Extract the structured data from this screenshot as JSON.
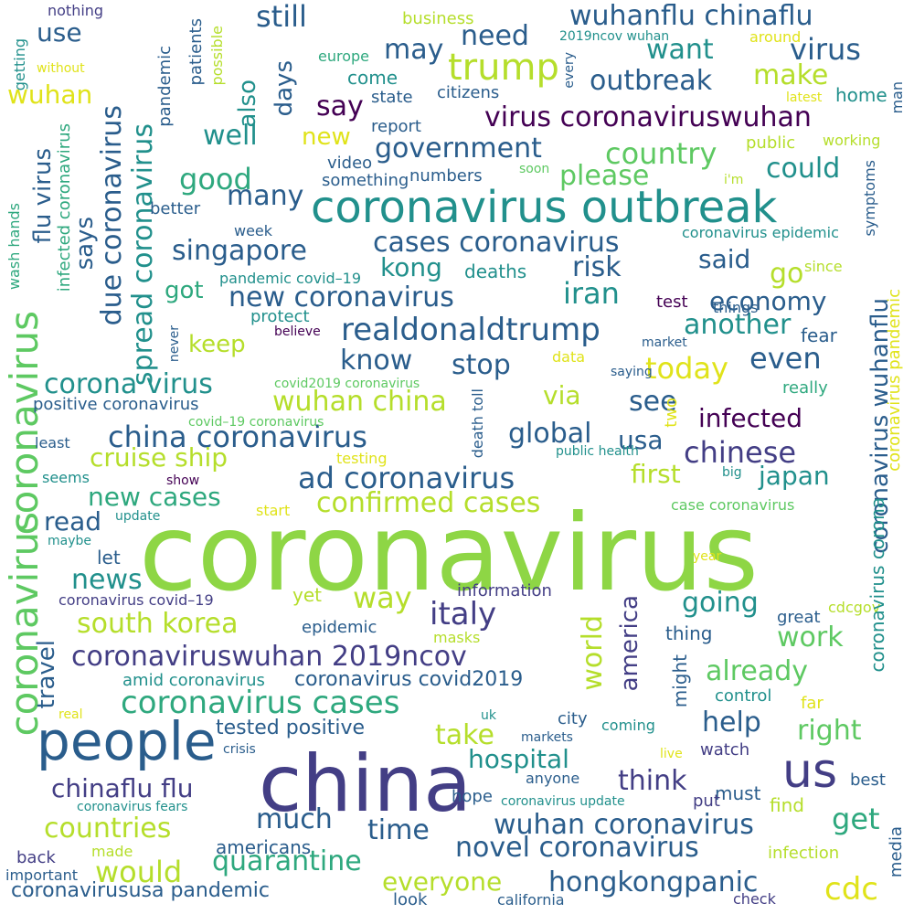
{
  "palette": {
    "dark_purple": "#440154",
    "indigo": "#433e85",
    "blue": "#2a5d8c",
    "teal": "#21908c",
    "green_teal": "#2ea87e",
    "green": "#5ec962",
    "lime": "#8ed645",
    "yellow_green": "#b5de2b",
    "yellow": "#e0e31a"
  },
  "words": [
    {
      "text": "coronavirus",
      "color": "lime"
    },
    {
      "text": "china",
      "color": "indigo"
    },
    {
      "text": "people",
      "color": "blue"
    },
    {
      "text": "coronavirus outbreak",
      "color": "teal"
    },
    {
      "text": "us",
      "color": "indigo"
    },
    {
      "text": "trump",
      "color": "yellow_green"
    },
    {
      "text": "coronavirus",
      "color": "green"
    },
    {
      "text": "coronavirus",
      "color": "green"
    },
    {
      "text": "spread coronavirus",
      "color": "teal"
    },
    {
      "text": "due coronavirus",
      "color": "blue"
    },
    {
      "text": "realdonaldtrump",
      "color": "blue"
    },
    {
      "text": "coronaviruswuhan 2019ncov",
      "color": "indigo"
    },
    {
      "text": "coronavirus cases",
      "color": "green_teal"
    },
    {
      "text": "china coronavirus",
      "color": "blue"
    },
    {
      "text": "ad coronavirus",
      "color": "blue"
    },
    {
      "text": "virus coronaviruswuhan",
      "color": "dark_purple"
    },
    {
      "text": "wuhanflu chinaflu",
      "color": "blue"
    },
    {
      "text": "corona virus",
      "color": "teal"
    },
    {
      "text": "cases coronavirus",
      "color": "blue"
    },
    {
      "text": "new coronavirus",
      "color": "blue"
    },
    {
      "text": "government",
      "color": "blue"
    },
    {
      "text": "country",
      "color": "green"
    },
    {
      "text": "outbreak",
      "color": "blue"
    },
    {
      "text": "virus",
      "color": "blue"
    },
    {
      "text": "still",
      "color": "blue"
    },
    {
      "text": "need",
      "color": "blue"
    },
    {
      "text": "may",
      "color": "blue"
    },
    {
      "text": "want",
      "color": "teal"
    },
    {
      "text": "make",
      "color": "yellow_green"
    },
    {
      "text": "say",
      "color": "dark_purple"
    },
    {
      "text": "good",
      "color": "green_teal"
    },
    {
      "text": "well",
      "color": "teal"
    },
    {
      "text": "many",
      "color": "blue"
    },
    {
      "text": "singapore",
      "color": "blue"
    },
    {
      "text": "could",
      "color": "teal"
    },
    {
      "text": "please",
      "color": "green"
    },
    {
      "text": "kong",
      "color": "teal"
    },
    {
      "text": "iran",
      "color": "teal"
    },
    {
      "text": "risk",
      "color": "blue"
    },
    {
      "text": "said",
      "color": "blue"
    },
    {
      "text": "go",
      "color": "yellow_green"
    },
    {
      "text": "economy",
      "color": "blue"
    },
    {
      "text": "another",
      "color": "teal"
    },
    {
      "text": "know",
      "color": "blue"
    },
    {
      "text": "stop",
      "color": "blue"
    },
    {
      "text": "today",
      "color": "yellow"
    },
    {
      "text": "even",
      "color": "blue"
    },
    {
      "text": "infected",
      "color": "dark_purple"
    },
    {
      "text": "chinese",
      "color": "indigo"
    },
    {
      "text": "wuhan china",
      "color": "yellow_green"
    },
    {
      "text": "cruise ship",
      "color": "yellow_green"
    },
    {
      "text": "confirmed cases",
      "color": "yellow_green"
    },
    {
      "text": "new cases",
      "color": "green_teal"
    },
    {
      "text": "global",
      "color": "blue"
    },
    {
      "text": "usa",
      "color": "blue"
    },
    {
      "text": "see",
      "color": "blue"
    },
    {
      "text": "via",
      "color": "yellow_green"
    },
    {
      "text": "first",
      "color": "yellow_green"
    },
    {
      "text": "japan",
      "color": "teal"
    },
    {
      "text": "read",
      "color": "blue"
    },
    {
      "text": "news",
      "color": "teal"
    },
    {
      "text": "way",
      "color": "yellow_green"
    },
    {
      "text": "italy",
      "color": "indigo"
    },
    {
      "text": "going",
      "color": "teal"
    },
    {
      "text": "work",
      "color": "green"
    },
    {
      "text": "already",
      "color": "green"
    },
    {
      "text": "south korea",
      "color": "yellow_green"
    },
    {
      "text": "coronavirus covid2019",
      "color": "blue"
    },
    {
      "text": "tested positive",
      "color": "blue"
    },
    {
      "text": "take",
      "color": "yellow_green"
    },
    {
      "text": "help",
      "color": "blue"
    },
    {
      "text": "right",
      "color": "green"
    },
    {
      "text": "hospital",
      "color": "teal"
    },
    {
      "text": "think",
      "color": "indigo"
    },
    {
      "text": "chinaflu flu",
      "color": "indigo"
    },
    {
      "text": "much",
      "color": "blue"
    },
    {
      "text": "time",
      "color": "blue"
    },
    {
      "text": "countries",
      "color": "yellow_green"
    },
    {
      "text": "wuhan coronavirus",
      "color": "blue"
    },
    {
      "text": "get",
      "color": "green_teal"
    },
    {
      "text": "novel coronavirus",
      "color": "blue"
    },
    {
      "text": "quarantine",
      "color": "green_teal"
    },
    {
      "text": "would",
      "color": "yellow_green"
    },
    {
      "text": "everyone",
      "color": "yellow_green"
    },
    {
      "text": "hongkongpanic",
      "color": "blue"
    },
    {
      "text": "cdc",
      "color": "yellow"
    },
    {
      "text": "coronavirususa pandemic",
      "color": "blue"
    },
    {
      "text": "flu virus",
      "color": "blue"
    },
    {
      "text": "says",
      "color": "blue"
    },
    {
      "text": "days",
      "color": "blue"
    },
    {
      "text": "also",
      "color": "teal"
    },
    {
      "text": "coronavirus wuhanflu",
      "color": "blue"
    },
    {
      "text": "world",
      "color": "yellow_green"
    },
    {
      "text": "america",
      "color": "indigo"
    },
    {
      "text": "travel",
      "color": "blue"
    },
    {
      "text": "wuhan",
      "color": "yellow"
    },
    {
      "text": "use",
      "color": "blue"
    },
    {
      "text": "new",
      "color": "yellow"
    },
    {
      "text": "got",
      "color": "green_teal"
    },
    {
      "text": "keep",
      "color": "yellow_green"
    },
    {
      "text": "positive coronavirus",
      "color": "blue"
    },
    {
      "text": "let",
      "color": "blue"
    },
    {
      "text": "yet",
      "color": "yellow_green"
    },
    {
      "text": "information",
      "color": "indigo"
    },
    {
      "text": "great",
      "color": "blue"
    },
    {
      "text": "thing",
      "color": "blue"
    },
    {
      "text": "epidemic",
      "color": "blue"
    },
    {
      "text": "amid coronavirus",
      "color": "teal"
    },
    {
      "text": "coronavirus covid–19",
      "color": "indigo"
    },
    {
      "text": "might",
      "color": "blue"
    },
    {
      "text": "city",
      "color": "blue"
    },
    {
      "text": "coming",
      "color": "teal"
    },
    {
      "text": "watch",
      "color": "indigo"
    },
    {
      "text": "best",
      "color": "blue"
    },
    {
      "text": "must",
      "color": "blue"
    },
    {
      "text": "hope",
      "color": "blue"
    },
    {
      "text": "put",
      "color": "indigo"
    },
    {
      "text": "find",
      "color": "yellow_green"
    },
    {
      "text": "americans",
      "color": "blue"
    },
    {
      "text": "back",
      "color": "indigo"
    },
    {
      "text": "made",
      "color": "yellow_green"
    },
    {
      "text": "look",
      "color": "blue"
    },
    {
      "text": "california",
      "color": "blue"
    },
    {
      "text": "check",
      "color": "indigo"
    },
    {
      "text": "media",
      "color": "blue"
    },
    {
      "text": "infection",
      "color": "yellow_green"
    },
    {
      "text": "important",
      "color": "blue"
    },
    {
      "text": "control",
      "color": "teal"
    },
    {
      "text": "far",
      "color": "yellow"
    },
    {
      "text": "cdcgov",
      "color": "yellow_green"
    },
    {
      "text": "coronavirus corona",
      "color": "teal"
    },
    {
      "text": "coronavirus pandemic",
      "color": "yellow"
    },
    {
      "text": "fear",
      "color": "blue"
    },
    {
      "text": "test",
      "color": "dark_purple"
    },
    {
      "text": "things",
      "color": "blue"
    },
    {
      "text": "since",
      "color": "yellow_green"
    },
    {
      "text": "coronavirus epidemic",
      "color": "teal"
    },
    {
      "text": "symptoms",
      "color": "blue"
    },
    {
      "text": "working",
      "color": "yellow_green"
    },
    {
      "text": "public",
      "color": "yellow_green"
    },
    {
      "text": "home",
      "color": "teal"
    },
    {
      "text": "latest",
      "color": "yellow"
    },
    {
      "text": "man",
      "color": "blue"
    },
    {
      "text": "around",
      "color": "yellow"
    },
    {
      "text": "2019ncov wuhan",
      "color": "teal"
    },
    {
      "text": "business",
      "color": "yellow_green"
    },
    {
      "text": "europe",
      "color": "green_teal"
    },
    {
      "text": "every",
      "color": "blue"
    },
    {
      "text": "come",
      "color": "teal"
    },
    {
      "text": "state",
      "color": "blue"
    },
    {
      "text": "citizens",
      "color": "blue"
    },
    {
      "text": "report",
      "color": "blue"
    },
    {
      "text": "video",
      "color": "blue"
    },
    {
      "text": "something",
      "color": "blue"
    },
    {
      "text": "numbers",
      "color": "blue"
    },
    {
      "text": "soon",
      "color": "green"
    },
    {
      "text": "i'm",
      "color": "yellow_green"
    },
    {
      "text": "week",
      "color": "blue"
    },
    {
      "text": "better",
      "color": "blue"
    },
    {
      "text": "pandemic covid–19",
      "color": "teal"
    },
    {
      "text": "deaths",
      "color": "teal"
    },
    {
      "text": "protect",
      "color": "teal"
    },
    {
      "text": "believe",
      "color": "dark_purple"
    },
    {
      "text": "market",
      "color": "blue"
    },
    {
      "text": "data",
      "color": "yellow"
    },
    {
      "text": "saying",
      "color": "blue"
    },
    {
      "text": "really",
      "color": "green_teal"
    },
    {
      "text": "covid2019 coronavirus",
      "color": "green"
    },
    {
      "text": "covid–19 coronavirus",
      "color": "green"
    },
    {
      "text": "two",
      "color": "yellow"
    },
    {
      "text": "death toll",
      "color": "blue"
    },
    {
      "text": "testing",
      "color": "yellow"
    },
    {
      "text": "public health",
      "color": "teal"
    },
    {
      "text": "big",
      "color": "teal"
    },
    {
      "text": "case coronavirus",
      "color": "green"
    },
    {
      "text": "least",
      "color": "blue"
    },
    {
      "text": "seems",
      "color": "teal"
    },
    {
      "text": "show",
      "color": "dark_purple"
    },
    {
      "text": "start",
      "color": "yellow"
    },
    {
      "text": "update",
      "color": "teal"
    },
    {
      "text": "maybe",
      "color": "teal"
    },
    {
      "text": "never",
      "color": "blue"
    },
    {
      "text": "masks",
      "color": "yellow_green"
    },
    {
      "text": "year",
      "color": "yellow"
    },
    {
      "text": "real",
      "color": "yellow"
    },
    {
      "text": "uk",
      "color": "teal"
    },
    {
      "text": "markets",
      "color": "blue"
    },
    {
      "text": "crisis",
      "color": "blue"
    },
    {
      "text": "live",
      "color": "yellow"
    },
    {
      "text": "anyone",
      "color": "blue"
    },
    {
      "text": "coronavirus update",
      "color": "teal"
    },
    {
      "text": "coronavirus fears",
      "color": "teal"
    },
    {
      "text": "patients",
      "color": "blue"
    },
    {
      "text": "pandemic",
      "color": "blue"
    },
    {
      "text": "possible",
      "color": "yellow_green"
    },
    {
      "text": "infected coronavirus",
      "color": "green_teal"
    },
    {
      "text": "wash hands",
      "color": "green_teal"
    },
    {
      "text": "getting",
      "color": "teal"
    },
    {
      "text": "without",
      "color": "yellow"
    },
    {
      "text": "nothing",
      "color": "indigo"
    }
  ]
}
